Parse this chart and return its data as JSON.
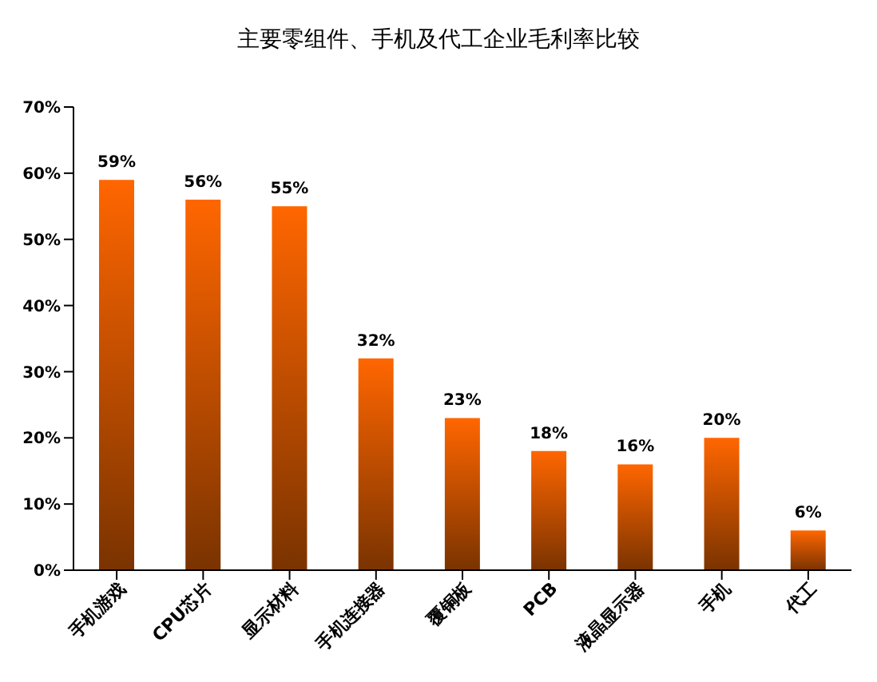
{
  "chart_data": {
    "type": "bar",
    "title": "主要零组件、手机及代工企业毛利率比较",
    "categories": [
      "手机游戏",
      "CPU芯片",
      "显示材料",
      "手机连接器",
      "覆铜板",
      "PCB",
      "液晶显示器",
      "手机",
      "代工"
    ],
    "values": [
      59,
      56,
      55,
      32,
      23,
      18,
      16,
      20,
      6
    ],
    "color": "#ff6600",
    "value_labels": [
      "59%",
      "56%",
      "55%",
      "32%",
      "23%",
      "18%",
      "16%",
      "20%",
      "6%"
    ],
    "ylim": [
      0,
      70
    ],
    "yticks": [
      {
        "value": 0,
        "label": "0%"
      },
      {
        "value": 10,
        "label": "10%"
      },
      {
        "value": 20,
        "label": "20%"
      },
      {
        "value": 30,
        "label": "30%"
      },
      {
        "value": 40,
        "label": "40%"
      },
      {
        "value": 50,
        "label": "50%"
      },
      {
        "value": 60,
        "label": "60%"
      },
      {
        "value": 70,
        "label": "70%"
      }
    ],
    "grid": false,
    "legend": false
  }
}
